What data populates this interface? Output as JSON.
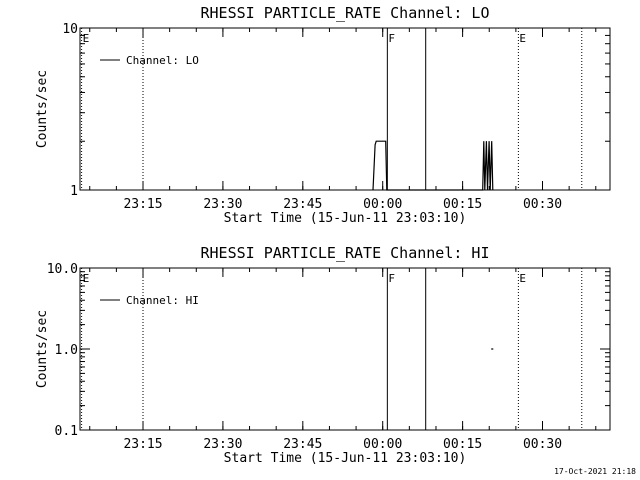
{
  "footer": {
    "stamp": "17-Oct-2021 21:18"
  },
  "chart_data": [
    {
      "type": "line",
      "title": "RHESSI PARTICLE_RATE Channel: LO",
      "xlabel": "Start Time (15-Jun-11 23:03:10)",
      "ylabel": "Counts/sec",
      "yscale": "log",
      "ylim": [
        1,
        10
      ],
      "yticks": [
        {
          "v": 1,
          "label": "1"
        },
        {
          "v": 10,
          "label": "10"
        }
      ],
      "xlim_minutes_after_start": [
        0,
        99.5
      ],
      "xticks": [
        {
          "m": 11.83,
          "label": "23:15"
        },
        {
          "m": 26.83,
          "label": "23:30"
        },
        {
          "m": 41.83,
          "label": "23:45"
        },
        {
          "m": 56.83,
          "label": "00:00"
        },
        {
          "m": 71.83,
          "label": "00:15"
        },
        {
          "m": 86.83,
          "label": "00:30"
        }
      ],
      "legend": "top-left",
      "series": [
        {
          "name": "Channel: LO",
          "points": [
            [
              55.0,
              1
            ],
            [
              55.4,
              1.9
            ],
            [
              55.6,
              2
            ],
            [
              57.4,
              2
            ],
            [
              57.6,
              1
            ],
            [
              75.6,
              1
            ],
            [
              75.8,
              2
            ],
            [
              76.0,
              1
            ],
            [
              76.3,
              2
            ],
            [
              76.5,
              1
            ],
            [
              76.8,
              2
            ],
            [
              77.0,
              1
            ],
            [
              77.3,
              2
            ],
            [
              77.5,
              1
            ]
          ]
        }
      ],
      "events": [
        {
          "m": 0.3,
          "label": "E",
          "style": "dotted"
        },
        {
          "m": 11.83,
          "label": "",
          "style": "dotted"
        },
        {
          "m": 57.7,
          "label": "F",
          "style": "solid"
        },
        {
          "m": 64.9,
          "label": "",
          "style": "solid"
        },
        {
          "m": 82.3,
          "label": "E",
          "style": "dotted"
        },
        {
          "m": 94.2,
          "label": "",
          "style": "dotted"
        }
      ]
    },
    {
      "type": "line",
      "title": "RHESSI PARTICLE_RATE Channel: HI",
      "xlabel": "Start Time (15-Jun-11 23:03:10)",
      "ylabel": "Counts/sec",
      "yscale": "log",
      "ylim": [
        0.1,
        10
      ],
      "yticks": [
        {
          "v": 0.1,
          "label": "0.1"
        },
        {
          "v": 1,
          "label": "1.0"
        },
        {
          "v": 10,
          "label": "10.0"
        }
      ],
      "xlim_minutes_after_start": [
        0,
        99.5
      ],
      "xticks": [
        {
          "m": 11.83,
          "label": "23:15"
        },
        {
          "m": 26.83,
          "label": "23:30"
        },
        {
          "m": 41.83,
          "label": "23:45"
        },
        {
          "m": 56.83,
          "label": "00:00"
        },
        {
          "m": 71.83,
          "label": "00:15"
        },
        {
          "m": 86.83,
          "label": "00:30"
        }
      ],
      "legend": "top-left",
      "series": [
        {
          "name": "Channel: HI",
          "points": [
            [
              77.2,
              1
            ],
            [
              77.6,
              1
            ]
          ]
        }
      ],
      "events": [
        {
          "m": 0.3,
          "label": "E",
          "style": "dotted"
        },
        {
          "m": 11.83,
          "label": "",
          "style": "dotted"
        },
        {
          "m": 57.7,
          "label": "F",
          "style": "solid"
        },
        {
          "m": 64.9,
          "label": "",
          "style": "solid"
        },
        {
          "m": 82.3,
          "label": "E",
          "style": "dotted"
        },
        {
          "m": 94.2,
          "label": "",
          "style": "dotted"
        }
      ]
    }
  ]
}
